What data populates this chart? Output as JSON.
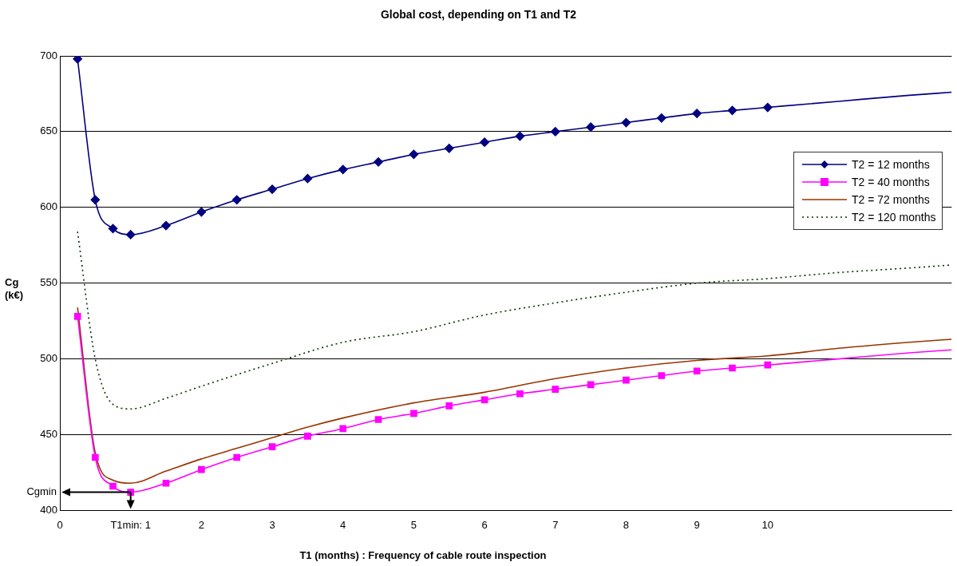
{
  "chart_data": {
    "type": "line",
    "title": "Global cost,  depending on T1 and T2",
    "xlabel": "T1 (months) : Frequency of cable route inspection",
    "ylabel": "Cg (k€)",
    "xlim": [
      0,
      12.6
    ],
    "xticks": [
      0,
      {
        "value": 1,
        "label": "T1min: 1"
      },
      2,
      3,
      4,
      5,
      6,
      7,
      8,
      9,
      10
    ],
    "ylim": [
      400,
      700
    ],
    "yticks": [
      400,
      450,
      500,
      550,
      600,
      650,
      700
    ],
    "grid": "y",
    "legend": "right",
    "annotations": [
      "Cgmin"
    ],
    "series": [
      {
        "name": "T2 = 12 months",
        "color": "#000080",
        "marker": "diamond",
        "x": [
          0.25,
          0.5,
          0.75,
          1,
          1.5,
          2,
          2.5,
          3,
          3.5,
          4,
          4.5,
          5,
          5.5,
          6,
          6.5,
          7,
          7.5,
          8,
          8.5,
          9,
          9.5,
          10,
          11,
          12,
          12.6
        ],
        "values": [
          698,
          605,
          586,
          582,
          588,
          597,
          605,
          612,
          619,
          625,
          630,
          635,
          639,
          643,
          647,
          650,
          653,
          656,
          659,
          662,
          664,
          666,
          670,
          674,
          676
        ]
      },
      {
        "name": "T2 = 40 months",
        "color": "#ff00ff",
        "marker": "square",
        "x": [
          0.25,
          0.5,
          0.75,
          1,
          1.5,
          2,
          2.5,
          3,
          3.5,
          4,
          4.5,
          5,
          5.5,
          6,
          6.5,
          7,
          7.5,
          8,
          8.5,
          9,
          9.5,
          10,
          11,
          12,
          12.6
        ],
        "values": [
          528,
          435,
          416,
          412,
          418,
          427,
          435,
          442,
          449,
          454,
          460,
          464,
          469,
          473,
          477,
          480,
          483,
          486,
          489,
          492,
          494,
          496,
          500,
          504,
          506
        ]
      },
      {
        "name": "T2 = 72 months",
        "color": "#993300",
        "marker": "none",
        "x": [
          0.25,
          0.5,
          0.75,
          1,
          1.5,
          2,
          2.5,
          3,
          3.5,
          4,
          5,
          6,
          7,
          8,
          9,
          10,
          11,
          12,
          12.6
        ],
        "values": [
          534,
          438,
          420,
          418,
          426,
          434,
          441,
          448,
          455,
          461,
          471,
          478,
          487,
          494,
          499,
          502,
          507,
          511,
          513
        ]
      },
      {
        "name": "T2 = 120 months",
        "color": "#003300",
        "marker": "none",
        "line_style": "dotted",
        "x": [
          0.25,
          0.5,
          0.75,
          1,
          1.5,
          2,
          3,
          4,
          5,
          6,
          7,
          8,
          9,
          10,
          11,
          12,
          12.6
        ],
        "values": [
          584,
          500,
          470,
          467,
          474,
          482,
          497,
          511,
          518,
          529,
          537,
          544,
          550,
          553,
          557,
          560,
          562
        ]
      }
    ]
  }
}
